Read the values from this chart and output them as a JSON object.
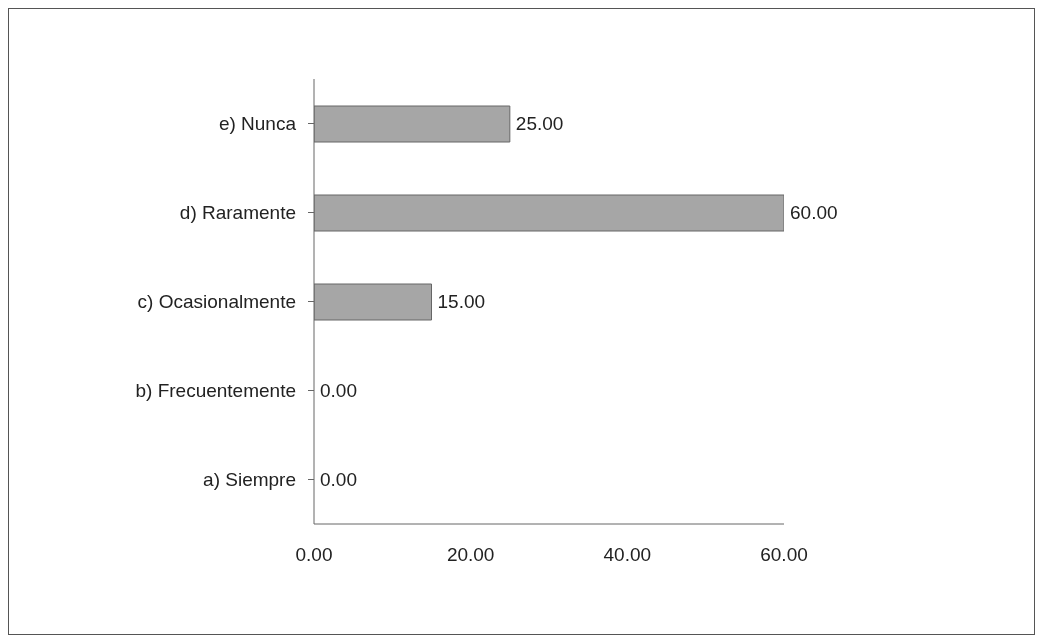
{
  "chart_data": {
    "type": "bar",
    "orientation": "horizontal",
    "categories": [
      "e) Nunca",
      "d) Raramente",
      "c) Ocasionalmente",
      "b) Frecuentemente",
      "a) Siempre"
    ],
    "values": [
      25,
      60,
      15,
      0,
      0
    ],
    "value_labels": [
      "25.00",
      "60.00",
      "15.00",
      "0.00",
      "0.00"
    ],
    "color": "#a6a6a6",
    "xlim": [
      0,
      60
    ],
    "xticks": [
      {
        "value": 0,
        "label": "0.00"
      },
      {
        "value": 20,
        "label": "20.00"
      },
      {
        "value": 40,
        "label": "40.00"
      },
      {
        "value": 60,
        "label": "60.00"
      }
    ],
    "grid": false,
    "legend": false
  }
}
